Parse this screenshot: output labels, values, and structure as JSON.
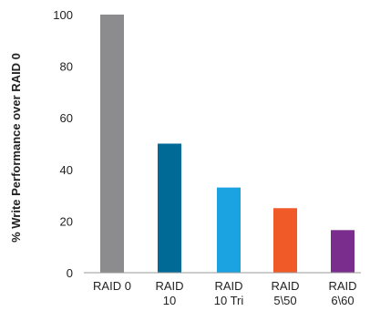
{
  "chart_data": {
    "type": "bar",
    "ylabel": "% Write Performance over RAID 0",
    "ylim": [
      0,
      100
    ],
    "yticks": [
      0,
      20,
      40,
      60,
      80,
      100
    ],
    "grid": false,
    "categories": [
      [
        "RAID 0"
      ],
      [
        "RAID",
        "10"
      ],
      [
        "RAID",
        "10 Tri"
      ],
      [
        "RAID",
        "5\\50"
      ],
      [
        "RAID",
        "6\\60"
      ]
    ],
    "values": [
      100,
      50,
      33,
      25,
      16.5
    ],
    "colors": [
      "#8c8c8e",
      "#006a96",
      "#1aa3e0",
      "#f05a28",
      "#7a2d8c"
    ]
  }
}
